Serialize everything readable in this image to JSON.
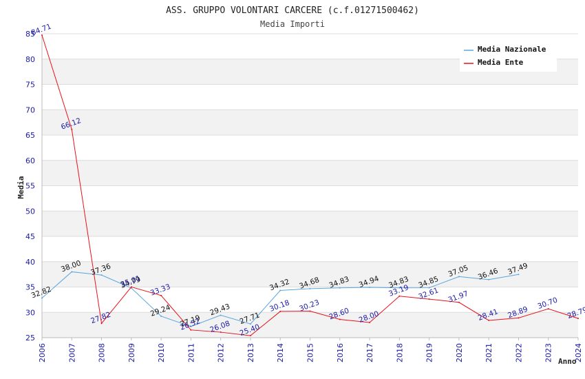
{
  "chart_data": {
    "type": "line",
    "title": "ASS. GRUPPO VOLONTARI CARCERE (c.f.01271500462)",
    "subtitle": "Media Importi",
    "xlabel": "Anno",
    "ylabel": "Media",
    "ylim": [
      25,
      85
    ],
    "yticks": [
      25,
      30,
      35,
      40,
      45,
      50,
      55,
      60,
      65,
      70,
      75,
      80,
      85
    ],
    "categories": [
      "2006",
      "2007",
      "2008",
      "2009",
      "2010",
      "2011",
      "2012",
      "2013",
      "2014",
      "2015",
      "2016",
      "2017",
      "2018",
      "2019",
      "2020",
      "2021",
      "2022",
      "2023",
      "2024"
    ],
    "grid": true,
    "legend_position": "top-right",
    "series": [
      {
        "name": "Media Nazionale",
        "color": "#5aa5dc",
        "values": [
          32.82,
          38.0,
          37.36,
          34.79,
          29.24,
          27.19,
          29.43,
          27.71,
          34.32,
          34.68,
          34.83,
          34.94,
          34.83,
          34.85,
          37.05,
          36.46,
          37.49,
          null,
          null
        ],
        "labels": [
          "32.82",
          "38.00",
          "37.36",
          "34.79",
          "29.24",
          "27.19",
          "29.43",
          "27.71",
          "34.32",
          "34.68",
          "34.83",
          "34.94",
          "34.83",
          "34.85",
          "37.05",
          "36.46",
          "37.49",
          "",
          ""
        ]
      },
      {
        "name": "Media Ente",
        "color": "#e8101a",
        "values": [
          84.71,
          66.12,
          27.82,
          35.01,
          33.33,
          26.52,
          26.08,
          25.4,
          30.18,
          30.23,
          28.6,
          28.0,
          33.19,
          32.61,
          31.97,
          28.41,
          28.89,
          30.7,
          28.79
        ],
        "labels": [
          "84.71",
          "66.12",
          "27.82",
          "35.01",
          "33.33",
          "26.52",
          "26.08",
          "25.40",
          "30.18",
          "30.23",
          "28.60",
          "28.00",
          "33.19",
          "32.61",
          "31.97",
          "28.41",
          "28.89",
          "30.70",
          "28.79"
        ]
      }
    ]
  }
}
